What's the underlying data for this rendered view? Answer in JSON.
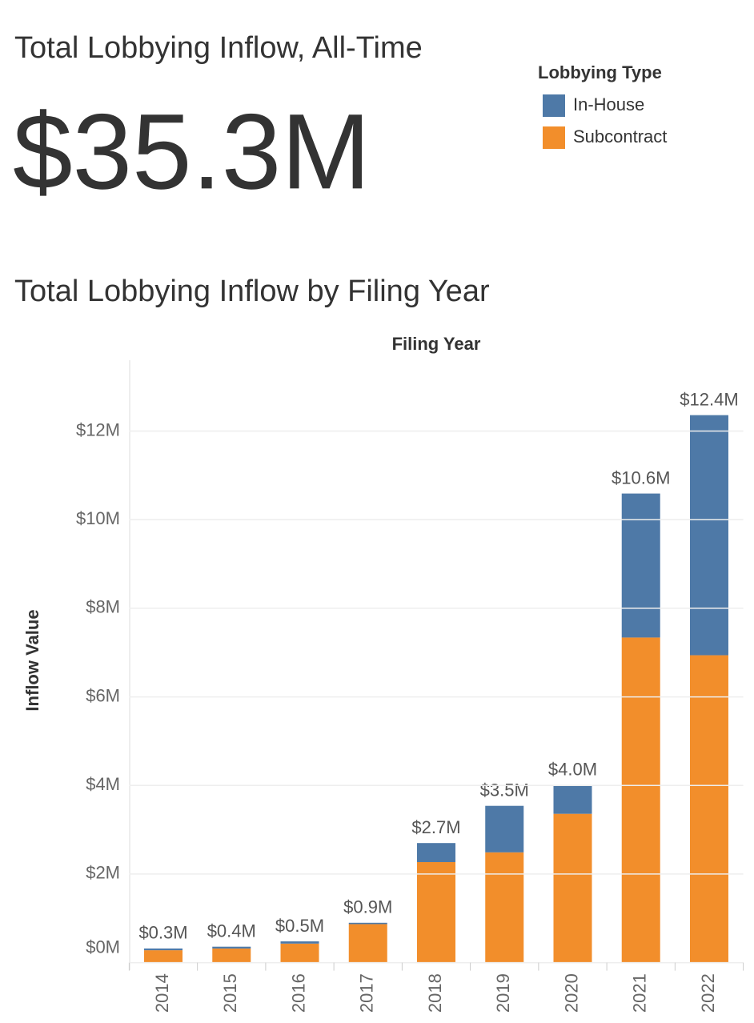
{
  "kpi": {
    "title": "Total Lobbying Inflow, All-Time",
    "value_label": "$35.3M"
  },
  "chart_data": {
    "type": "stacked_bar",
    "title": "Total Lobbying Inflow by Filing Year",
    "x_axis_title": "Filing Year",
    "y_axis_title": "Inflow Value",
    "legend_title": "Lobbying Type",
    "categories": [
      "2014",
      "2015",
      "2016",
      "2017",
      "2018",
      "2019",
      "2020",
      "2021",
      "2022"
    ],
    "series": [
      {
        "name": "In-House",
        "color": "#4e79a7",
        "values": [
          0.04,
          0.04,
          0.05,
          0.03,
          0.43,
          1.05,
          0.65,
          3.25,
          5.42
        ]
      },
      {
        "name": "Subcontract",
        "color": "#f28e2b",
        "values": [
          0.28,
          0.32,
          0.43,
          0.87,
          2.27,
          2.49,
          3.36,
          7.34,
          6.94
        ]
      }
    ],
    "totals": {
      "values": [
        0.32,
        0.36,
        0.48,
        0.9,
        2.7,
        3.54,
        4.01,
        10.59,
        12.36
      ],
      "value_labels": [
        "$0.3M",
        "$0.4M",
        "$0.5M",
        "$0.9M",
        "$2.7M",
        "$3.5M",
        "$4.0M",
        "$10.6M",
        "$12.4M"
      ]
    },
    "ylim": [
      0,
      13.6
    ],
    "yticks": [
      {
        "value": 0,
        "label": "$0M"
      },
      {
        "value": 2,
        "label": "$2M"
      },
      {
        "value": 4,
        "label": "$4M"
      },
      {
        "value": 6,
        "label": "$6M"
      },
      {
        "value": 8,
        "label": "$8M"
      },
      {
        "value": 10,
        "label": "$10M"
      },
      {
        "value": 12,
        "label": "$12M"
      }
    ],
    "grid": true
  }
}
